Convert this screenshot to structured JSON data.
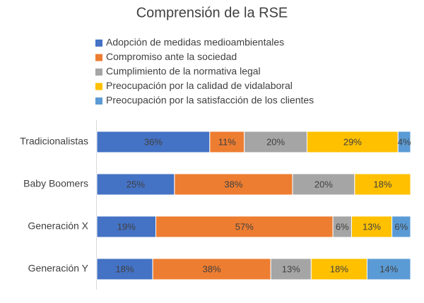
{
  "chart_data": {
    "type": "percent-stacked-bar",
    "orientation": "horizontal",
    "title": "Comprensión de la RSE",
    "categories": [
      "Tradicionalistas",
      "Baby Boomers",
      "Generación X",
      "Generación Y"
    ],
    "legend": "top-left",
    "series": [
      {
        "name": "Adopción de medidas medioambientales",
        "color": "#4472c4",
        "values": [
          36,
          25,
          19,
          18
        ],
        "value_labels": [
          "36%",
          "25%",
          "19%",
          "18%"
        ]
      },
      {
        "name": "Compromiso ante la sociedad",
        "color": "#ed7d31",
        "values": [
          11,
          38,
          57,
          38
        ],
        "value_labels": [
          "11%",
          "38%",
          "57%",
          "38%"
        ]
      },
      {
        "name": "Cumplimiento de la normativa legal",
        "color": "#a5a5a5",
        "values": [
          20,
          20,
          6,
          13
        ],
        "value_labels": [
          "20%",
          "20%",
          "6%",
          "13%"
        ]
      },
      {
        "name": "Preocupación por la calidad de vidalaboral",
        "color": "#ffc000",
        "values": [
          29,
          18,
          13,
          18
        ],
        "value_labels": [
          "29%",
          "18%",
          "13%",
          "18%"
        ]
      },
      {
        "name": "Preocupación por la satisfacción de los clientes",
        "color": "#5b9bd5",
        "values": [
          4,
          null,
          6,
          14
        ],
        "value_labels": [
          "4%",
          null,
          "6%",
          "14%"
        ]
      }
    ]
  }
}
